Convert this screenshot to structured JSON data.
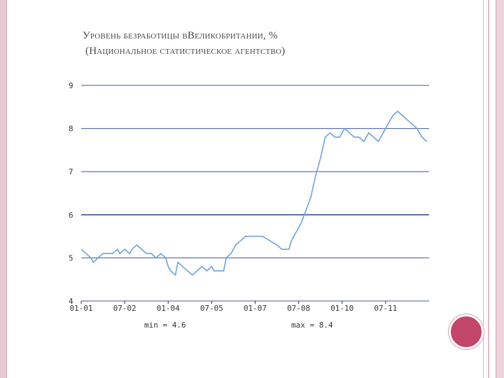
{
  "title_line1": "Уровень безработицы вВеликобритании, %",
  "title_line2": "(Национальное статистическое агентство)",
  "stats": {
    "min": "min = 4.6",
    "max": "max = 8.4"
  },
  "colors": {
    "line": "#6ea3d7",
    "grid": "#3d55a0",
    "accent": "#c2456a",
    "frame": "#e8c9d4"
  },
  "chart_data": {
    "type": "line",
    "title": "Уровень безработицы вВеликобритании, %",
    "subtitle": "(Национальное статистическое агентство)",
    "xlabel": "",
    "ylabel": "",
    "ylim": [
      4,
      9
    ],
    "xlim": [
      "2001-01",
      "2012-12"
    ],
    "yticks": [
      "9",
      "8",
      "7",
      "6",
      "5",
      "4"
    ],
    "xticks": [
      "01-01",
      "07-02",
      "01-04",
      "07-05",
      "01-07",
      "07-08",
      "01-10",
      "07-11"
    ],
    "grid": true,
    "series": [
      {
        "values": [
          [
            "2001-01",
            5.2
          ],
          [
            "2001-03",
            5.1
          ],
          [
            "2001-05",
            5.0
          ],
          [
            "2001-06",
            4.9
          ],
          [
            "2001-08",
            5.0
          ],
          [
            "2001-10",
            5.1
          ],
          [
            "2001-12",
            5.1
          ],
          [
            "2002-02",
            5.1
          ],
          [
            "2002-04",
            5.2
          ],
          [
            "2002-05",
            5.1
          ],
          [
            "2002-07",
            5.2
          ],
          [
            "2002-09",
            5.1
          ],
          [
            "2002-10",
            5.2
          ],
          [
            "2002-12",
            5.3
          ],
          [
            "2003-02",
            5.2
          ],
          [
            "2003-04",
            5.1
          ],
          [
            "2003-06",
            5.1
          ],
          [
            "2003-08",
            5.0
          ],
          [
            "2003-10",
            5.1
          ],
          [
            "2003-12",
            5.0
          ],
          [
            "2004-01",
            4.8
          ],
          [
            "2004-02",
            4.7
          ],
          [
            "2004-04",
            4.6
          ],
          [
            "2004-05",
            4.9
          ],
          [
            "2004-07",
            4.8
          ],
          [
            "2004-09",
            4.7
          ],
          [
            "2004-11",
            4.6
          ],
          [
            "2005-01",
            4.7
          ],
          [
            "2005-03",
            4.8
          ],
          [
            "2005-05",
            4.7
          ],
          [
            "2005-07",
            4.8
          ],
          [
            "2005-08",
            4.7
          ],
          [
            "2005-10",
            4.7
          ],
          [
            "2005-12",
            4.7
          ],
          [
            "2006-01",
            5.0
          ],
          [
            "2006-03",
            5.1
          ],
          [
            "2006-05",
            5.3
          ],
          [
            "2006-07",
            5.4
          ],
          [
            "2006-09",
            5.5
          ],
          [
            "2006-11",
            5.5
          ],
          [
            "2007-01",
            5.5
          ],
          [
            "2007-04",
            5.5
          ],
          [
            "2007-07",
            5.4
          ],
          [
            "2007-10",
            5.3
          ],
          [
            "2007-12",
            5.2
          ],
          [
            "2008-03",
            5.2
          ],
          [
            "2008-04",
            5.4
          ],
          [
            "2008-06",
            5.6
          ],
          [
            "2008-08",
            5.8
          ],
          [
            "2008-10",
            6.1
          ],
          [
            "2008-12",
            6.4
          ],
          [
            "2009-02",
            6.9
          ],
          [
            "2009-04",
            7.3
          ],
          [
            "2009-06",
            7.8
          ],
          [
            "2009-08",
            7.9
          ],
          [
            "2009-10",
            7.8
          ],
          [
            "2009-12",
            7.8
          ],
          [
            "2010-02",
            8.0
          ],
          [
            "2010-04",
            7.9
          ],
          [
            "2010-06",
            7.8
          ],
          [
            "2010-08",
            7.8
          ],
          [
            "2010-10",
            7.7
          ],
          [
            "2010-12",
            7.9
          ],
          [
            "2011-02",
            7.8
          ],
          [
            "2011-04",
            7.7
          ],
          [
            "2011-06",
            7.9
          ],
          [
            "2011-08",
            8.1
          ],
          [
            "2011-10",
            8.3
          ],
          [
            "2011-12",
            8.4
          ],
          [
            "2012-02",
            8.3
          ],
          [
            "2012-04",
            8.2
          ],
          [
            "2012-06",
            8.1
          ],
          [
            "2012-08",
            8.0
          ],
          [
            "2012-10",
            7.8
          ],
          [
            "2012-12",
            7.7
          ]
        ]
      }
    ],
    "min": 4.6,
    "max": 8.4
  }
}
